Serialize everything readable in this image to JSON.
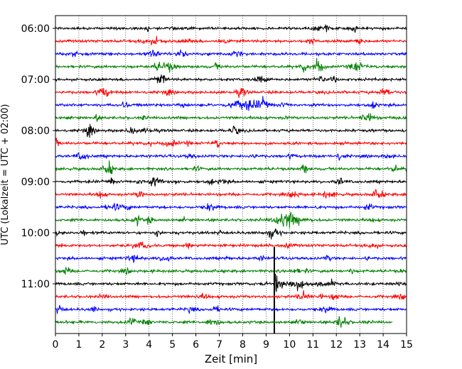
{
  "chart_data": {
    "type": "line",
    "title": "",
    "xlabel": "Zeit  [min]",
    "ylabel": "UTC (Lokalzeit = UTC + 02:00)",
    "xlim": [
      0,
      15
    ],
    "x_ticks": [
      "0",
      "1",
      "2",
      "3",
      "4",
      "5",
      "6",
      "7",
      "8",
      "9",
      "10",
      "11",
      "12",
      "13",
      "14",
      "15"
    ],
    "y_tick_labels": [
      "06:00",
      "07:00",
      "08:00",
      "09:00",
      "10:00",
      "11:00"
    ],
    "grid": "vertical dotted lines at each minute",
    "trace_interval_min": 15,
    "colors": [
      "#000000",
      "#ff0000",
      "#0000ff",
      "#008000"
    ],
    "traces": [
      {
        "start": "06:00",
        "color": "#000000"
      },
      {
        "start": "06:15",
        "color": "#ff0000"
      },
      {
        "start": "06:30",
        "color": "#0000ff"
      },
      {
        "start": "06:45",
        "color": "#008000"
      },
      {
        "start": "07:00",
        "color": "#000000"
      },
      {
        "start": "07:15",
        "color": "#ff0000"
      },
      {
        "start": "07:30",
        "color": "#0000ff"
      },
      {
        "start": "07:45",
        "color": "#008000"
      },
      {
        "start": "08:00",
        "color": "#000000"
      },
      {
        "start": "08:15",
        "color": "#ff0000"
      },
      {
        "start": "08:30",
        "color": "#0000ff"
      },
      {
        "start": "08:45",
        "color": "#008000"
      },
      {
        "start": "09:00",
        "color": "#000000"
      },
      {
        "start": "09:15",
        "color": "#ff0000"
      },
      {
        "start": "09:30",
        "color": "#0000ff"
      },
      {
        "start": "09:45",
        "color": "#008000"
      },
      {
        "start": "10:00",
        "color": "#000000"
      },
      {
        "start": "10:15",
        "color": "#ff0000"
      },
      {
        "start": "10:30",
        "color": "#0000ff"
      },
      {
        "start": "10:45",
        "color": "#008000"
      },
      {
        "start": "11:00",
        "color": "#000000"
      },
      {
        "start": "11:15",
        "color": "#ff0000"
      },
      {
        "start": "11:30",
        "color": "#0000ff"
      },
      {
        "start": "11:45",
        "color": "#008000",
        "end_min": 14.4
      }
    ],
    "events": [
      {
        "trace": "11:00",
        "time_min": 9.35,
        "strength": "strong"
      },
      {
        "trace": "09:45",
        "time_min": 10.0,
        "strength": "medium"
      },
      {
        "trace": "07:30",
        "time_min": 8.1,
        "strength": "medium"
      }
    ]
  }
}
